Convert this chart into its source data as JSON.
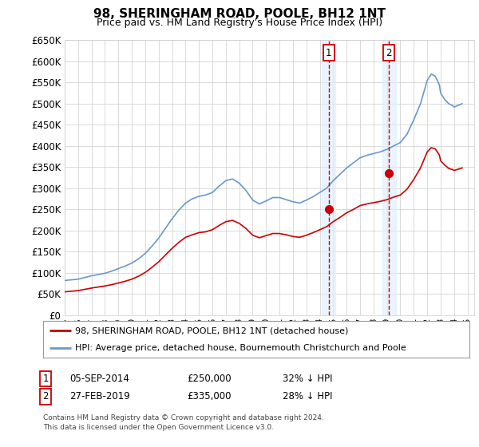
{
  "title": "98, SHERINGHAM ROAD, POOLE, BH12 1NT",
  "subtitle": "Price paid vs. HM Land Registry's House Price Index (HPI)",
  "legend_line1": "98, SHERINGHAM ROAD, POOLE, BH12 1NT (detached house)",
  "legend_line2": "HPI: Average price, detached house, Bournemouth Christchurch and Poole",
  "footnote1": "Contains HM Land Registry data © Crown copyright and database right 2024.",
  "footnote2": "This data is licensed under the Open Government Licence v3.0.",
  "sale1_date": "05-SEP-2014",
  "sale1_price": "£250,000",
  "sale1_hpi": "32% ↓ HPI",
  "sale1_year": 2014.67,
  "sale1_price_val": 250000,
  "sale2_date": "27-FEB-2019",
  "sale2_price": "£335,000",
  "sale2_hpi": "28% ↓ HPI",
  "sale2_year": 2019.16,
  "sale2_price_val": 335000,
  "price_color": "#cc0000",
  "hpi_color": "#6699cc",
  "marker_color": "#cc0000",
  "shade_color": "#ddeeff",
  "dashed_color": "#cc0000",
  "ylim_min": 0,
  "ylim_max": 650000,
  "ytick_step": 50000,
  "xmin": 1995,
  "xmax": 2025.5,
  "background": "#ffffff",
  "grid_color": "#cccccc",
  "hpi_years": [
    1995.0,
    1995.5,
    1996.0,
    1996.5,
    1997.0,
    1997.5,
    1998.0,
    1998.5,
    1999.0,
    1999.5,
    2000.0,
    2000.5,
    2001.0,
    2001.5,
    2002.0,
    2002.5,
    2003.0,
    2003.5,
    2004.0,
    2004.5,
    2005.0,
    2005.5,
    2006.0,
    2006.5,
    2007.0,
    2007.5,
    2008.0,
    2008.5,
    2009.0,
    2009.5,
    2010.0,
    2010.5,
    2011.0,
    2011.5,
    2012.0,
    2012.5,
    2013.0,
    2013.5,
    2014.0,
    2014.5,
    2015.0,
    2015.5,
    2016.0,
    2016.5,
    2017.0,
    2017.5,
    2018.0,
    2018.5,
    2019.0,
    2019.5,
    2020.0,
    2020.5,
    2021.0,
    2021.5,
    2022.0,
    2022.3,
    2022.6,
    2022.9,
    2023.0,
    2023.3,
    2023.6,
    2023.9,
    2024.0,
    2024.3,
    2024.6
  ],
  "hpi_values": [
    82000,
    83500,
    85000,
    89000,
    93000,
    96000,
    99000,
    104000,
    110000,
    116000,
    123000,
    133000,
    146000,
    163000,
    182000,
    205000,
    228000,
    248000,
    265000,
    275000,
    281000,
    284000,
    290000,
    305000,
    318000,
    322000,
    312000,
    295000,
    272000,
    263000,
    270000,
    278000,
    278000,
    273000,
    268000,
    265000,
    272000,
    280000,
    290000,
    300000,
    318000,
    333000,
    348000,
    360000,
    372000,
    378000,
    382000,
    386000,
    392000,
    400000,
    408000,
    428000,
    462000,
    500000,
    555000,
    570000,
    565000,
    545000,
    525000,
    510000,
    500000,
    495000,
    492000,
    496000,
    500000
  ],
  "red_years": [
    1995.0,
    1995.5,
    1996.0,
    1996.5,
    1997.0,
    1997.5,
    1998.0,
    1998.5,
    1999.0,
    1999.5,
    2000.0,
    2000.5,
    2001.0,
    2001.5,
    2002.0,
    2002.5,
    2003.0,
    2003.5,
    2004.0,
    2004.5,
    2005.0,
    2005.5,
    2006.0,
    2006.5,
    2007.0,
    2007.5,
    2008.0,
    2008.5,
    2009.0,
    2009.5,
    2010.0,
    2010.5,
    2011.0,
    2011.5,
    2012.0,
    2012.5,
    2013.0,
    2013.5,
    2014.0,
    2014.5,
    2015.0,
    2015.5,
    2016.0,
    2016.5,
    2017.0,
    2017.5,
    2018.0,
    2018.5,
    2019.0,
    2019.5,
    2020.0,
    2020.5,
    2021.0,
    2021.5,
    2022.0,
    2022.3,
    2022.6,
    2022.9,
    2023.0,
    2023.3,
    2023.6,
    2023.9,
    2024.0,
    2024.3,
    2024.6
  ],
  "red_values": [
    55000,
    56500,
    58000,
    61000,
    64000,
    66500,
    69000,
    72000,
    76000,
    80000,
    85000,
    92000,
    101000,
    113000,
    126000,
    142000,
    158000,
    172000,
    184000,
    190000,
    195000,
    197000,
    202000,
    212000,
    221000,
    224000,
    217000,
    205000,
    189000,
    183000,
    188000,
    193000,
    193000,
    190000,
    186000,
    184000,
    189000,
    195000,
    202000,
    209000,
    221000,
    231000,
    242000,
    250000,
    259000,
    263000,
    266000,
    269000,
    273000,
    279000,
    284000,
    298000,
    321000,
    348000,
    386000,
    396000,
    393000,
    379000,
    365000,
    355000,
    347000,
    344000,
    342000,
    345000,
    348000
  ]
}
